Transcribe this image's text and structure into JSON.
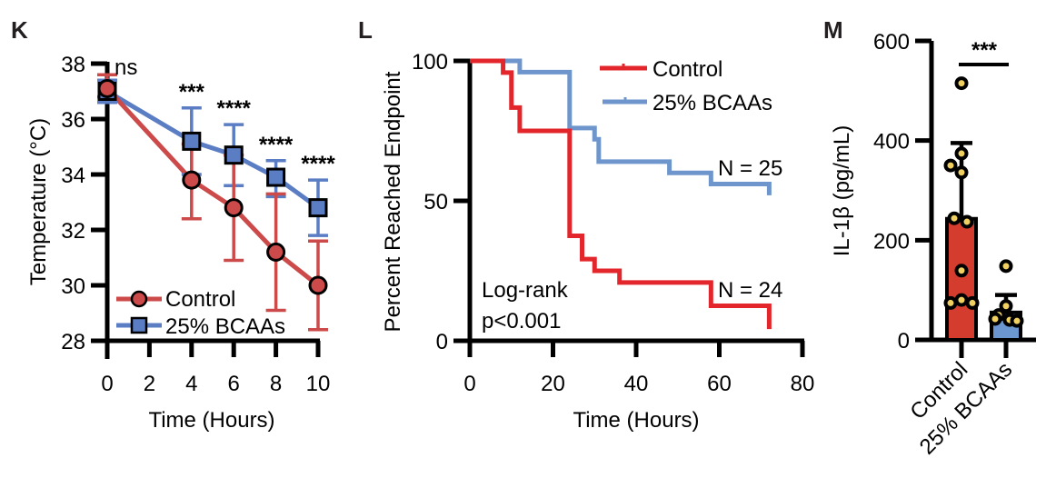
{
  "colors": {
    "k_control": "#cc4a4a",
    "k_bcaa": "#5a7dc4",
    "l_control": "#e3262b",
    "l_bcaa": "#6e96cd",
    "m_control_bar": "#d43d2e",
    "m_bcaa_bar": "#6b96d0",
    "m_dot_fill": "#f0d060"
  },
  "chart_data": [
    {
      "panel": "K",
      "type": "line",
      "xlabel": "Time (Hours)",
      "ylabel": "Temperature (°C)",
      "xlim": [
        0,
        10
      ],
      "ylim": [
        28,
        38
      ],
      "xticks": [
        0,
        2,
        4,
        6,
        8,
        10
      ],
      "yticks": [
        28,
        30,
        32,
        34,
        36,
        38
      ],
      "legend_position": "bottom-left",
      "x": [
        0,
        4,
        6,
        8,
        10
      ],
      "series": [
        {
          "name": "Control",
          "marker": "circle",
          "values": [
            37.1,
            33.8,
            32.8,
            31.2,
            30.0
          ],
          "err_low": [
            36.8,
            32.4,
            30.9,
            29.1,
            28.4
          ],
          "err_high": [
            37.6,
            35.1,
            34.7,
            33.3,
            31.6
          ]
        },
        {
          "name": "25% BCAAs",
          "marker": "square",
          "values": [
            37.0,
            35.2,
            34.7,
            33.9,
            32.8
          ],
          "err_low": [
            36.6,
            34.0,
            33.6,
            33.2,
            31.8
          ],
          "err_high": [
            37.4,
            36.4,
            35.8,
            34.5,
            33.8
          ]
        }
      ],
      "significance": [
        {
          "x": 0,
          "label": "ns"
        },
        {
          "x": 4,
          "label": "***"
        },
        {
          "x": 6,
          "label": "****"
        },
        {
          "x": 8,
          "label": "****"
        },
        {
          "x": 10,
          "label": "****"
        }
      ]
    },
    {
      "panel": "L",
      "type": "line",
      "subtype": "kaplan-meier step",
      "xlabel": "Time (Hours)",
      "ylabel": "Percent Reached Endpoint",
      "xlim": [
        0,
        80
      ],
      "ylim": [
        0,
        100
      ],
      "xticks": [
        0,
        20,
        40,
        60,
        80
      ],
      "yticks": [
        0,
        50,
        100
      ],
      "legend_position": "top-right",
      "series": [
        {
          "name": "Control",
          "n_label": "N = 24",
          "steps": [
            [
              0,
              100
            ],
            [
              8,
              95.8
            ],
            [
              10,
              83.3
            ],
            [
              12,
              75.0
            ],
            [
              24,
              37.5
            ],
            [
              27,
              29.2
            ],
            [
              30,
              25.0
            ],
            [
              36,
              20.8
            ],
            [
              58,
              12.5
            ],
            [
              72,
              4.2
            ]
          ],
          "end_x": 72
        },
        {
          "name": "25% BCAAs",
          "n_label": "N = 25",
          "steps": [
            [
              0,
              100
            ],
            [
              12,
              96
            ],
            [
              24,
              76
            ],
            [
              30,
              72
            ],
            [
              31,
              64
            ],
            [
              48,
              60
            ],
            [
              58,
              56
            ],
            [
              72,
              52
            ]
          ],
          "end_x": 72
        }
      ],
      "annotation": [
        "Log-rank",
        "p<0.001"
      ]
    },
    {
      "panel": "M",
      "type": "bar",
      "ylabel": "IL-1β (pg/mL)",
      "ylim": [
        0,
        600
      ],
      "yticks": [
        0,
        200,
        400,
        600
      ],
      "categories": [
        "Control",
        "25% BCAAs"
      ],
      "values": [
        243,
        55
      ],
      "err_high": [
        395,
        90
      ],
      "points": [
        [
          515,
          374,
          350,
          336,
          244,
          237,
          139,
          80,
          74,
          74
        ],
        [
          148,
          68,
          50,
          42,
          40,
          38
        ]
      ],
      "significance": "***"
    }
  ]
}
